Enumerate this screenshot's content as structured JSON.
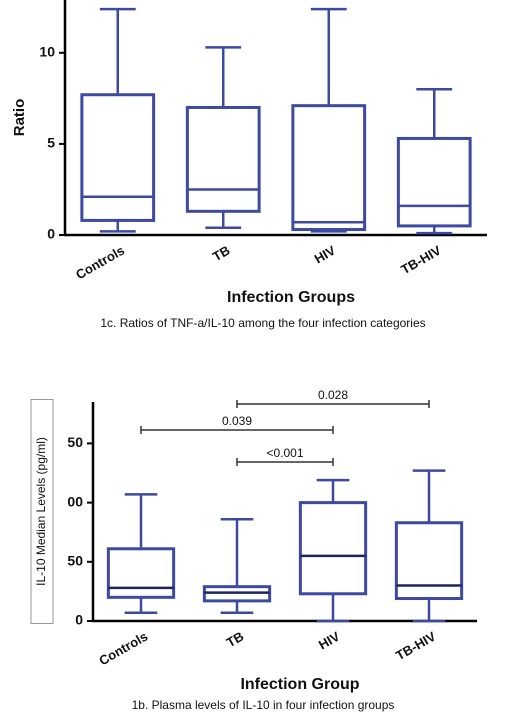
{
  "chart_data": [
    {
      "type": "box",
      "y_label": "Ratio",
      "x_label": "Infection Groups",
      "caption": "1c. Ratios of TNF-a/IL-10 among the four infection categories",
      "categories": [
        "Controls",
        "TB",
        "HIV",
        "TB-HIV"
      ],
      "color": "#3b49ad",
      "boxes": [
        {
          "min": 0.2,
          "q1": 0.8,
          "median": 2.1,
          "q3": 7.7,
          "max": 12.4
        },
        {
          "min": 0.4,
          "q1": 1.3,
          "median": 2.5,
          "q3": 7.0,
          "max": 10.3
        },
        {
          "min": 0.2,
          "q1": 0.3,
          "median": 0.7,
          "q3": 7.1,
          "max": 12.4
        },
        {
          "min": 0.1,
          "q1": 0.5,
          "median": 1.6,
          "q3": 5.3,
          "max": 8.0
        }
      ],
      "ylim": [
        0,
        12.9
      ],
      "yticks": [
        0,
        5,
        10
      ]
    },
    {
      "type": "box",
      "y_label": "IL-10 Median Levels (pg/ml)",
      "x_label": "Infection Group",
      "caption": "1b. Plasma levels of IL-10 in four infection groups",
      "categories": [
        "Controls",
        "TB",
        "HIV",
        "TB-HIV"
      ],
      "color": "#3b49ad",
      "boxes": [
        {
          "min": 7,
          "q1": 20,
          "median": 28,
          "q3": 61,
          "max": 107
        },
        {
          "min": 7,
          "q1": 17,
          "median": 24,
          "q3": 29,
          "max": 86
        },
        {
          "min": 0,
          "q1": 23,
          "median": 55,
          "q3": 100,
          "max": 119
        },
        {
          "min": 0,
          "q1": 19,
          "median": 30,
          "q3": 83,
          "max": 127
        }
      ],
      "annotations": [
        "0.028",
        "0.039",
        "<0.001"
      ],
      "ylim": [
        0,
        185
      ],
      "yticks": [
        0,
        50,
        {
          "value": 100,
          "label": "00"
        },
        {
          "value": 150,
          "label": "50"
        }
      ]
    }
  ]
}
